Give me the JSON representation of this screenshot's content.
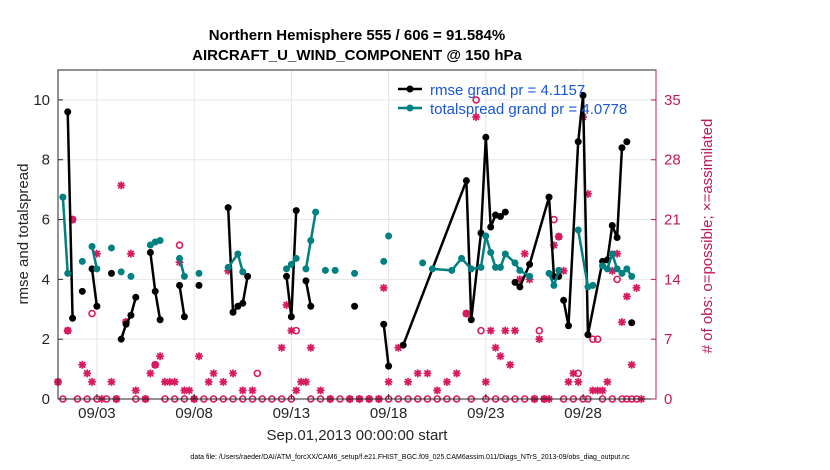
{
  "chart_data": {
    "type": "line",
    "title_line1": "Northern Hemisphere 555 / 606 = 91.584%",
    "title_line2": "AIRCRAFT_U_WIND_COMPONENT @ 150 hPa",
    "ylabel_left": "rmse and totalspread",
    "ylabel_right": "# of obs: o=possible; ×=assimilated",
    "xlabel": "Sep.01,2013 00:00:00 start",
    "footer": "data file: /Users/raeder/DAI/ATM_forcXX/CAM6_setup/f.e21.FHIST_BGC.f09_025.CAM6assim.011/Diags_NTrS_2013-09/obs_diag_output.nc",
    "xlim": [
      1,
      31.75
    ],
    "ylim_left": [
      0,
      11
    ],
    "ylim_right": [
      0,
      38.5
    ],
    "yticks_left": [
      0,
      2,
      4,
      6,
      8,
      10
    ],
    "yticks_right": [
      0,
      7,
      14,
      21,
      28,
      35
    ],
    "xticks": [
      3,
      8,
      13,
      18,
      23,
      28
    ],
    "xtick_labels": [
      "09/03",
      "09/08",
      "09/13",
      "09/18",
      "09/23",
      "09/28"
    ],
    "colors": {
      "rmse": "#000000",
      "spread": "#008080",
      "obs": "#d81b60",
      "right_axis": "#c2185b",
      "legend_text": "#1a56db"
    },
    "series": [
      {
        "name": "rmse grand pr = 4.1157",
        "color": "#000000",
        "points": [
          [
            1.5,
            9.6
          ],
          [
            1.75,
            2.7
          ],
          [
            2.25,
            3.6
          ],
          [
            2.75,
            4.35
          ],
          [
            3.0,
            3.1
          ],
          [
            3.75,
            4.2
          ],
          [
            4.25,
            2.0
          ],
          [
            4.5,
            2.5
          ],
          [
            4.75,
            2.8
          ],
          [
            5.0,
            3.4
          ],
          [
            5.75,
            4.9
          ],
          [
            6.0,
            3.6
          ],
          [
            6.25,
            2.65
          ],
          [
            7.25,
            3.8
          ],
          [
            7.5,
            2.75
          ],
          [
            8.25,
            3.8
          ],
          [
            9.75,
            6.4
          ],
          [
            10.0,
            2.9
          ],
          [
            10.25,
            3.1
          ],
          [
            10.5,
            3.2
          ],
          [
            10.75,
            4.1
          ],
          [
            12.75,
            4.1
          ],
          [
            13.0,
            2.75
          ],
          [
            13.25,
            6.3
          ],
          [
            13.75,
            3.95
          ],
          [
            14.0,
            3.1
          ],
          [
            17.75,
            2.5
          ],
          [
            18.0,
            1.1
          ],
          [
            16.25,
            3.1
          ],
          [
            18.75,
            1.8
          ],
          [
            22.0,
            7.3
          ],
          [
            22.25,
            2.65
          ],
          [
            22.75,
            5.55
          ],
          [
            23.0,
            8.75
          ],
          [
            23.25,
            5.75
          ],
          [
            23.5,
            6.15
          ],
          [
            23.75,
            6.1
          ],
          [
            24.0,
            6.25
          ],
          [
            24.5,
            3.9
          ],
          [
            24.75,
            3.75
          ],
          [
            25.25,
            4.5
          ],
          [
            26.25,
            6.75
          ],
          [
            26.5,
            4.1
          ],
          [
            26.75,
            4.1
          ],
          [
            27.0,
            3.3
          ],
          [
            27.25,
            2.45
          ],
          [
            27.75,
            8.6
          ],
          [
            28.0,
            10.15
          ],
          [
            28.25,
            2.15
          ],
          [
            29.0,
            4.6
          ],
          [
            29.25,
            4.65
          ],
          [
            29.5,
            5.8
          ],
          [
            29.75,
            5.4
          ],
          [
            30.0,
            8.4
          ],
          [
            30.25,
            8.6
          ],
          [
            30.5,
            2.55
          ]
        ],
        "segments": [
          [
            0,
            1
          ],
          [
            3,
            4
          ],
          [
            6,
            7
          ],
          [
            7,
            8
          ],
          [
            8,
            9
          ],
          [
            10,
            11
          ],
          [
            11,
            12
          ],
          [
            13,
            14
          ],
          [
            16,
            17
          ],
          [
            17,
            18
          ],
          [
            18,
            19
          ],
          [
            19,
            20
          ],
          [
            21,
            22
          ],
          [
            22,
            23
          ],
          [
            24,
            25
          ],
          [
            26,
            27
          ],
          [
            29,
            30
          ],
          [
            30,
            31
          ],
          [
            31,
            32
          ],
          [
            32,
            33
          ],
          [
            33,
            34
          ],
          [
            34,
            35
          ],
          [
            35,
            36
          ],
          [
            36,
            37
          ],
          [
            38,
            39
          ],
          [
            39,
            40
          ],
          [
            40,
            41
          ],
          [
            41,
            42
          ],
          [
            42,
            43
          ],
          [
            44,
            45
          ],
          [
            45,
            46
          ],
          [
            46,
            47
          ],
          [
            47,
            48
          ],
          [
            48,
            49
          ],
          [
            49,
            50
          ],
          [
            50,
            51
          ],
          [
            51,
            52
          ],
          [
            52,
            53
          ]
        ]
      },
      {
        "name": "totalspread grand pr = 4.0778",
        "color": "#008080",
        "points": [
          [
            1.25,
            6.75
          ],
          [
            1.5,
            4.2
          ],
          [
            2.25,
            4.6
          ],
          [
            2.75,
            5.1
          ],
          [
            3.0,
            4.35
          ],
          [
            3.75,
            5.05
          ],
          [
            4.25,
            4.25
          ],
          [
            4.75,
            4.1
          ],
          [
            5.75,
            5.15
          ],
          [
            6.0,
            5.25
          ],
          [
            6.25,
            5.3
          ],
          [
            7.25,
            4.7
          ],
          [
            7.5,
            4.1
          ],
          [
            8.25,
            4.2
          ],
          [
            9.75,
            4.4
          ],
          [
            10.25,
            4.85
          ],
          [
            10.5,
            4.25
          ],
          [
            12.75,
            4.35
          ],
          [
            13.0,
            4.5
          ],
          [
            13.25,
            4.7
          ],
          [
            13.75,
            4.35
          ],
          [
            14.0,
            5.3
          ],
          [
            14.25,
            6.25
          ],
          [
            14.75,
            4.3
          ],
          [
            15.25,
            4.3
          ],
          [
            16.25,
            4.2
          ],
          [
            18.0,
            5.45
          ],
          [
            17.75,
            4.6
          ],
          [
            19.75,
            4.55
          ],
          [
            20.25,
            4.35
          ],
          [
            21.25,
            4.3
          ],
          [
            21.75,
            4.7
          ],
          [
            22.25,
            4.35
          ],
          [
            22.75,
            4.4
          ],
          [
            23.0,
            5.45
          ],
          [
            23.25,
            4.9
          ],
          [
            23.5,
            4.4
          ],
          [
            23.75,
            4.4
          ],
          [
            24.0,
            4.85
          ],
          [
            24.5,
            4.55
          ],
          [
            24.75,
            4.3
          ],
          [
            25.25,
            4.1
          ],
          [
            26.25,
            4.2
          ],
          [
            26.5,
            3.8
          ],
          [
            26.75,
            4.3
          ],
          [
            27.75,
            5.65
          ],
          [
            28.25,
            3.75
          ],
          [
            28.5,
            3.8
          ],
          [
            29.0,
            4.45
          ],
          [
            29.25,
            4.35
          ],
          [
            29.5,
            4.85
          ],
          [
            29.75,
            4.35
          ],
          [
            30.0,
            4.2
          ],
          [
            30.25,
            4.35
          ],
          [
            30.5,
            4.1
          ]
        ],
        "segments": [
          [
            0,
            1
          ],
          [
            3,
            4
          ],
          [
            8,
            9
          ],
          [
            9,
            10
          ],
          [
            11,
            12
          ],
          [
            14,
            15
          ],
          [
            15,
            16
          ],
          [
            17,
            18
          ],
          [
            18,
            19
          ],
          [
            20,
            21
          ],
          [
            21,
            22
          ],
          [
            29,
            30
          ],
          [
            30,
            31
          ],
          [
            31,
            32
          ],
          [
            32,
            33
          ],
          [
            33,
            34
          ],
          [
            34,
            35
          ],
          [
            35,
            36
          ],
          [
            36,
            37
          ],
          [
            37,
            38
          ],
          [
            38,
            39
          ],
          [
            39,
            40
          ],
          [
            40,
            41
          ],
          [
            42,
            43
          ],
          [
            43,
            44
          ],
          [
            45,
            46
          ],
          [
            48,
            49
          ],
          [
            49,
            50
          ],
          [
            50,
            51
          ],
          [
            51,
            52
          ],
          [
            52,
            53
          ],
          [
            53,
            54
          ]
        ]
      }
    ],
    "obs_possible": [
      [
        1.0,
        2.0
      ],
      [
        1.25,
        0.0
      ],
      [
        1.5,
        8.0
      ],
      [
        1.75,
        21.0
      ],
      [
        2.0,
        0.0
      ],
      [
        2.5,
        0.0
      ],
      [
        2.75,
        10.0
      ],
      [
        3.0,
        0.0
      ],
      [
        3.5,
        0.0
      ],
      [
        4.0,
        0.0
      ],
      [
        4.5,
        9.0
      ],
      [
        5.0,
        0.0
      ],
      [
        5.5,
        0.0
      ],
      [
        6.0,
        4.0
      ],
      [
        6.5,
        0.0
      ],
      [
        7.0,
        0.0
      ],
      [
        7.5,
        0.0
      ],
      [
        7.25,
        18.0
      ],
      [
        8.0,
        0.0
      ],
      [
        8.5,
        0.0
      ],
      [
        9.0,
        0.0
      ],
      [
        9.5,
        0.0
      ],
      [
        10.0,
        0.0
      ],
      [
        10.5,
        0.0
      ],
      [
        11.0,
        0.0
      ],
      [
        11.25,
        3.0
      ],
      [
        11.5,
        0.0
      ],
      [
        12.0,
        0.0
      ],
      [
        12.5,
        0.0
      ],
      [
        13.0,
        0.0
      ],
      [
        13.25,
        8.0
      ],
      [
        14.0,
        0.0
      ],
      [
        14.5,
        0.0
      ],
      [
        15.0,
        0.0
      ],
      [
        15.5,
        0.0
      ],
      [
        16.0,
        0.0
      ],
      [
        16.5,
        0.0
      ],
      [
        17.0,
        0.0
      ],
      [
        17.5,
        0.0
      ],
      [
        18.0,
        0.0
      ],
      [
        18.5,
        0.0
      ],
      [
        19.0,
        0.0
      ],
      [
        19.5,
        0.0
      ],
      [
        20.0,
        0.0
      ],
      [
        20.5,
        0.0
      ],
      [
        21.0,
        0.0
      ],
      [
        21.5,
        0.0
      ],
      [
        22.0,
        10.0
      ],
      [
        22.25,
        0.0
      ],
      [
        22.5,
        35.0
      ],
      [
        22.75,
        8.0
      ],
      [
        23.0,
        0.0
      ],
      [
        23.5,
        0.0
      ],
      [
        24.0,
        0.0
      ],
      [
        24.5,
        0.0
      ],
      [
        25.0,
        0.0
      ],
      [
        25.5,
        0.0
      ],
      [
        25.75,
        8.0
      ],
      [
        26.0,
        0.0
      ],
      [
        26.5,
        21.0
      ],
      [
        26.75,
        19.0
      ],
      [
        27.0,
        0.0
      ],
      [
        27.5,
        0.0
      ],
      [
        27.75,
        3.0
      ],
      [
        28.0,
        0.0
      ],
      [
        28.25,
        0.0
      ],
      [
        28.5,
        7.0
      ],
      [
        28.75,
        7.0
      ],
      [
        29.0,
        0.0
      ],
      [
        29.5,
        0.0
      ],
      [
        29.75,
        14.0
      ],
      [
        30.0,
        0.0
      ],
      [
        30.25,
        0.0
      ],
      [
        30.5,
        0.0
      ],
      [
        30.75,
        0.0
      ]
    ],
    "obs_assimilated": [
      [
        1.0,
        2.0
      ],
      [
        1.5,
        8.0
      ],
      [
        1.75,
        21.0
      ],
      [
        2.25,
        4.0
      ],
      [
        2.5,
        3.0
      ],
      [
        2.75,
        2.0
      ],
      [
        3.0,
        17.0
      ],
      [
        3.25,
        0.0
      ],
      [
        3.75,
        2.0
      ],
      [
        4.0,
        0.0
      ],
      [
        4.25,
        25.0
      ],
      [
        4.5,
        9.0
      ],
      [
        4.75,
        17.0
      ],
      [
        5.0,
        1.0
      ],
      [
        5.5,
        0.0
      ],
      [
        5.75,
        3.0
      ],
      [
        6.0,
        4.0
      ],
      [
        6.25,
        5.0
      ],
      [
        6.5,
        2.0
      ],
      [
        6.75,
        2.0
      ],
      [
        7.0,
        2.0
      ],
      [
        7.25,
        16.0
      ],
      [
        7.5,
        1.0
      ],
      [
        7.75,
        1.0
      ],
      [
        8.0,
        0.0
      ],
      [
        8.25,
        5.0
      ],
      [
        8.75,
        2.0
      ],
      [
        9.0,
        3.0
      ],
      [
        9.5,
        2.0
      ],
      [
        9.75,
        15.0
      ],
      [
        10.0,
        3.0
      ],
      [
        10.5,
        1.0
      ],
      [
        11.0,
        1.0
      ],
      [
        12.5,
        6.0
      ],
      [
        12.75,
        11.0
      ],
      [
        13.0,
        8.0
      ],
      [
        13.25,
        1.0
      ],
      [
        13.5,
        2.0
      ],
      [
        13.75,
        2.0
      ],
      [
        14.0,
        6.0
      ],
      [
        14.5,
        1.0
      ],
      [
        15.0,
        0.0
      ],
      [
        16.0,
        0.0
      ],
      [
        16.5,
        0.0
      ],
      [
        17.0,
        0.0
      ],
      [
        17.5,
        0.0
      ],
      [
        17.75,
        13.0
      ],
      [
        18.0,
        2.0
      ],
      [
        18.5,
        6.0
      ],
      [
        19.0,
        2.0
      ],
      [
        19.5,
        3.0
      ],
      [
        20.0,
        3.0
      ],
      [
        20.5,
        1.0
      ],
      [
        21.0,
        2.0
      ],
      [
        21.5,
        3.0
      ],
      [
        22.0,
        10.0
      ],
      [
        22.5,
        33.0
      ],
      [
        23.0,
        2.0
      ],
      [
        23.25,
        8.0
      ],
      [
        23.5,
        6.0
      ],
      [
        23.75,
        5.0
      ],
      [
        24.0,
        8.0
      ],
      [
        24.25,
        4.0
      ],
      [
        24.5,
        8.0
      ],
      [
        24.75,
        14.0
      ],
      [
        25.0,
        17.0
      ],
      [
        25.25,
        14.0
      ],
      [
        25.5,
        0.0
      ],
      [
        25.75,
        7.0
      ],
      [
        26.0,
        0.0
      ],
      [
        26.25,
        0.0
      ],
      [
        26.5,
        18.0
      ],
      [
        26.75,
        19.0
      ],
      [
        27.0,
        15.0
      ],
      [
        27.25,
        2.0
      ],
      [
        27.5,
        3.0
      ],
      [
        27.75,
        2.0
      ],
      [
        28.0,
        33.0
      ],
      [
        28.25,
        24.0
      ],
      [
        28.5,
        1.0
      ],
      [
        28.75,
        1.0
      ],
      [
        29.0,
        1.0
      ],
      [
        29.25,
        2.0
      ],
      [
        29.5,
        15.0
      ],
      [
        29.75,
        17.0
      ],
      [
        30.0,
        9.0
      ],
      [
        30.25,
        12.0
      ],
      [
        30.5,
        4.0
      ],
      [
        30.75,
        13.0
      ],
      [
        31.0,
        0.0
      ]
    ]
  }
}
